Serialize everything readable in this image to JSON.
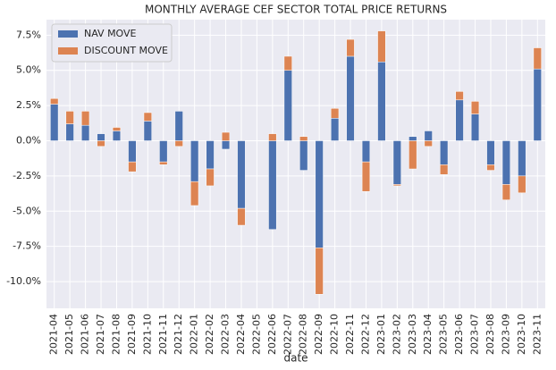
{
  "chart_data": {
    "type": "stacked_bar",
    "title": "MONTHLY AVERAGE CEF SECTOR TOTAL PRICE RETURNS",
    "x_label": "date",
    "categories": [
      "2021-04",
      "2021-05",
      "2021-06",
      "2021-07",
      "2021-08",
      "2021-09",
      "2021-10",
      "2021-11",
      "2021-12",
      "2022-01",
      "2022-02",
      "2022-03",
      "2022-04",
      "2022-05",
      "2022-06",
      "2022-07",
      "2022-08",
      "2022-09",
      "2022-10",
      "2022-11",
      "2022-12",
      "2023-01",
      "2023-02",
      "2023-03",
      "2023-04",
      "2023-05",
      "2023-06",
      "2023-07",
      "2023-08",
      "2023-09",
      "2023-10",
      "2023-11"
    ],
    "series": [
      {
        "name": "NAV MOVE",
        "color": "#4c72b0",
        "values": [
          2.6,
          1.2,
          1.1,
          0.5,
          0.7,
          -1.5,
          1.4,
          -1.5,
          2.1,
          -2.9,
          -2.0,
          -0.6,
          -4.8,
          0,
          -6.3,
          5.0,
          -2.1,
          -7.6,
          1.6,
          6.0,
          -1.5,
          5.6,
          -3.1,
          0.3,
          0.7,
          -1.7,
          2.9,
          1.9,
          -1.7,
          -3.1,
          -2.5,
          5.1
        ]
      },
      {
        "name": "DISCOUNT MOVE",
        "color": "#dd8452",
        "values": [
          0.4,
          0.9,
          1.0,
          -0.4,
          0.25,
          -0.7,
          0.6,
          -0.2,
          -0.4,
          -1.7,
          -1.2,
          0.6,
          -1.2,
          0,
          0.5,
          1.0,
          0.3,
          -3.3,
          0.7,
          1.2,
          -2.1,
          2.2,
          -0.1,
          -2.0,
          -0.4,
          -0.7,
          0.6,
          0.9,
          -0.4,
          -1.1,
          -1.2,
          1.5
        ]
      }
    ],
    "ylim": [
      -11.9,
      8.6
    ],
    "yticks": [
      {
        "value": -10,
        "label": "-10.0%"
      },
      {
        "value": -7.5,
        "label": "-7.5%"
      },
      {
        "value": -5,
        "label": "-5.0%"
      },
      {
        "value": -2.5,
        "label": "-2.5%"
      },
      {
        "value": 0,
        "label": "0.0%"
      },
      {
        "value": 2.5,
        "label": "2.5%"
      },
      {
        "value": 5,
        "label": "5.0%"
      },
      {
        "value": 7.5,
        "label": "7.5%"
      }
    ],
    "grid": true,
    "legend": "upper-left"
  }
}
